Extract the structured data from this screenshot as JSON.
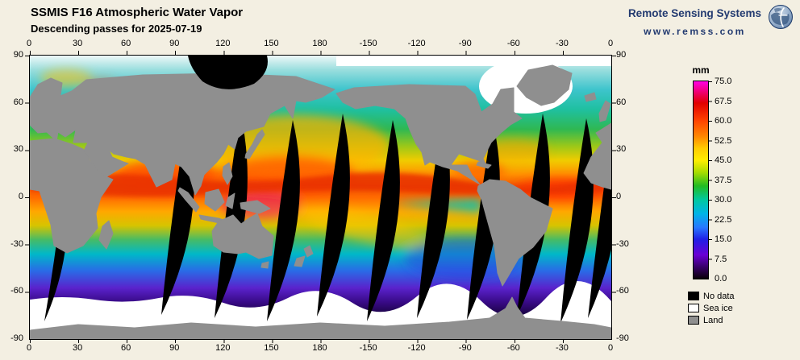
{
  "header": {
    "title": "SSMIS F16 Atmospheric Water Vapor",
    "subtitle": "Descending passes for 2025-07-19"
  },
  "brand": {
    "name": "Remote Sensing Systems",
    "url": "www.remss.com"
  },
  "axes": {
    "lon_ticks": [
      "0",
      "30",
      "60",
      "90",
      "120",
      "150",
      "180",
      "-150",
      "-120",
      "-90",
      "-60",
      "-30",
      "0"
    ],
    "lat_ticks": [
      "90",
      "60",
      "30",
      "0",
      "-30",
      "-60",
      "-90"
    ]
  },
  "colorbar": {
    "unit": "mm",
    "tick_labels": [
      "75.0",
      "67.5",
      "60.0",
      "52.5",
      "45.0",
      "37.5",
      "30.0",
      "22.5",
      "15.0",
      "7.5",
      "0.0"
    ]
  },
  "legend": {
    "items": [
      {
        "label": "No data",
        "color": "#000000"
      },
      {
        "label": "Sea ice",
        "color": "#ffffff"
      },
      {
        "label": "Land",
        "color": "#8f8f8f"
      }
    ]
  },
  "colors": {
    "background": "#f3efe2",
    "brand_navy": "#223a70",
    "land_gray": "#8f8f8f"
  },
  "chart_data": {
    "type": "heatmap",
    "title": "SSMIS F16 Atmospheric Water Vapor",
    "subtitle": "Descending passes for 2025-07-19",
    "units": "mm",
    "value_range": [
      0,
      75
    ],
    "colorbar_ticks": [
      75.0,
      67.5,
      60.0,
      52.5,
      45.0,
      37.5,
      30.0,
      22.5,
      15.0,
      7.5,
      0.0
    ],
    "x_axis": {
      "label": "",
      "ticks": [
        0,
        30,
        60,
        90,
        120,
        150,
        180,
        -150,
        -120,
        -90,
        -60,
        -30,
        0
      ],
      "span_deg": 360
    },
    "y_axis": {
      "label": "",
      "ticks": [
        90,
        60,
        30,
        0,
        -30,
        -60,
        -90
      ],
      "span_deg": 180
    },
    "projection": "equirectangular, Pacific-centered (180E at center)",
    "masks": [
      "No data",
      "Sea ice",
      "Land"
    ],
    "colormap_low_to_high": [
      "#000000",
      "#38006a",
      "#6a00d4",
      "#2020e6",
      "#2878ff",
      "#00b4e6",
      "#00c8a0",
      "#22bb22",
      "#aadd00",
      "#ffee00",
      "#ffcc00",
      "#ff8800",
      "#ff4400",
      "#e10000",
      "#ff00e6"
    ],
    "notable_features": "High vapor (red/magenta, 55-75mm) along ITCZ and west Pacific warm pool; dry (blue/purple, <15mm) poleward of 45 deg; black diagonal no-data gaps between descending orbit swaths; white sea-ice band around Antarctica"
  }
}
